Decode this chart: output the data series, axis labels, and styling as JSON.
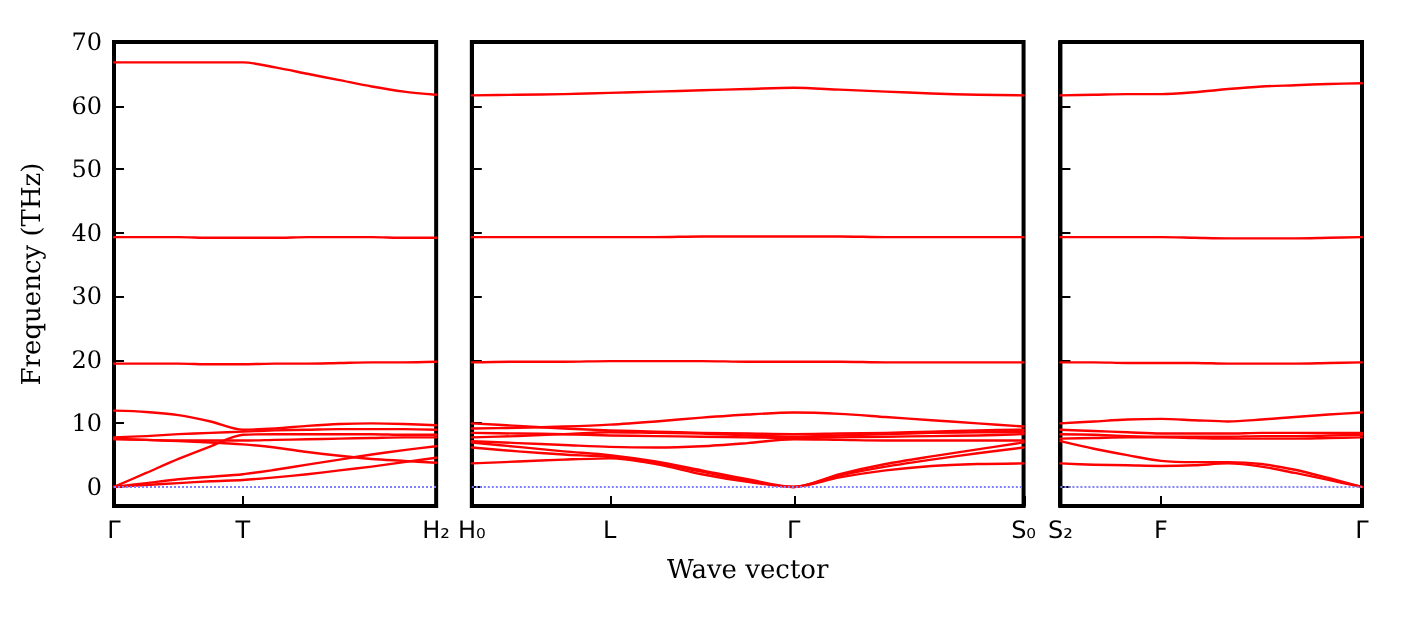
{
  "chart_data": [
    {
      "type": "line",
      "ylabel": "Frequency (THz)",
      "categories": [
        "Γ",
        null,
        null,
        null,
        "T",
        null,
        null,
        null,
        null,
        null,
        "H₂"
      ],
      "ylim": [
        -3,
        70
      ],
      "yticks": [
        0,
        10,
        20,
        30,
        40,
        50,
        60,
        70
      ],
      "ref_lines": [
        {
          "axis": "y",
          "value": 0,
          "color": "#8080ff",
          "line_style": "dotted"
        }
      ],
      "series": [
        {
          "color": "#ff0000",
          "values": [
            66.8,
            66.8,
            66.8,
            66.8,
            66.8,
            66,
            65,
            64,
            63,
            62.2,
            61.7
          ]
        },
        {
          "color": "#ff0000",
          "values": [
            39.3,
            39.3,
            39.3,
            39.2,
            39.2,
            39.2,
            39.3,
            39.3,
            39.3,
            39.2,
            39.2
          ]
        },
        {
          "color": "#ff0000",
          "values": [
            19.4,
            19.4,
            19.4,
            19.3,
            19.3,
            19.4,
            19.4,
            19.5,
            19.6,
            19.6,
            19.7
          ]
        },
        {
          "color": "#ff0000",
          "values": [
            12,
            11.8,
            11.3,
            10.3,
            9,
            9.2,
            9.6,
            9.9,
            10,
            9.9,
            9.7
          ]
        },
        {
          "color": "#ff0000",
          "values": [
            7.8,
            8,
            8.3,
            8.5,
            8.7,
            8.9,
            9,
            9.1,
            9.1,
            9.1,
            9
          ]
        },
        {
          "color": "#ff0000",
          "values": [
            7.5,
            7.4,
            7.3,
            7.3,
            7.3,
            7.4,
            7.5,
            7.6,
            7.7,
            7.8,
            7.8
          ]
        },
        {
          "color": "#ff0000",
          "values": [
            0,
            2.2,
            4.4,
            6.4,
            8.2,
            8.3,
            8.3,
            8.3,
            8.3,
            8.2,
            8.2
          ]
        },
        {
          "color": "#ff0000",
          "values": [
            7.6,
            7.4,
            7.2,
            7,
            6.7,
            6.2,
            5.5,
            4.9,
            4.4,
            4.1,
            3.8
          ]
        },
        {
          "color": "#ff0000",
          "values": [
            0,
            0.6,
            1.2,
            1.6,
            2,
            2.7,
            3.5,
            4.3,
            5.1,
            5.8,
            6.4
          ]
        },
        {
          "color": "#ff0000",
          "values": [
            0,
            0.3,
            0.6,
            0.9,
            1.1,
            1.5,
            2,
            2.6,
            3.2,
            3.9,
            4.6
          ]
        }
      ]
    },
    {
      "type": "line",
      "xlabel": "Wave vector",
      "tick_labels": "x",
      "categories": [
        "H₀",
        null,
        null,
        "L",
        null,
        null,
        null,
        "Γ",
        null,
        null,
        null,
        null,
        "S₀"
      ],
      "ylim": [
        -3,
        70
      ],
      "yticks": [
        {
          "value": 0,
          "label": null
        },
        {
          "value": 10,
          "label": null
        },
        {
          "value": 20,
          "label": null
        },
        {
          "value": 30,
          "label": null
        },
        {
          "value": 40,
          "label": null
        },
        {
          "value": 50,
          "label": null
        },
        {
          "value": 60,
          "label": null
        },
        {
          "value": 70,
          "label": null
        }
      ],
      "ref_lines": [
        {
          "axis": "y",
          "value": 0,
          "color": "#8080ff",
          "line_style": "dotted"
        }
      ],
      "series": [
        {
          "color": "#ff0000",
          "values": [
            61.6,
            61.7,
            61.8,
            62,
            62.2,
            62.4,
            62.6,
            62.8,
            62.5,
            62.2,
            61.9,
            61.7,
            61.6
          ]
        },
        {
          "color": "#ff0000",
          "values": [
            39.3,
            39.3,
            39.3,
            39.3,
            39.3,
            39.4,
            39.4,
            39.4,
            39.4,
            39.3,
            39.3,
            39.3,
            39.3
          ]
        },
        {
          "color": "#ff0000",
          "values": [
            19.6,
            19.7,
            19.7,
            19.8,
            19.8,
            19.8,
            19.7,
            19.7,
            19.7,
            19.6,
            19.6,
            19.6,
            19.6
          ]
        },
        {
          "color": "#ff0000",
          "values": [
            9.2,
            9.3,
            9.5,
            9.8,
            10.3,
            10.9,
            11.4,
            11.7,
            11.5,
            11,
            10.5,
            10,
            9.5
          ]
        },
        {
          "color": "#ff0000",
          "values": [
            10,
            9.6,
            9.2,
            8.9,
            8.7,
            8.5,
            8.4,
            8.3,
            8.4,
            8.5,
            8.7,
            8.9,
            9
          ]
        },
        {
          "color": "#ff0000",
          "values": [
            8.5,
            8.4,
            8.3,
            8.1,
            8,
            7.9,
            7.8,
            7.7,
            7.8,
            7.9,
            8,
            8.1,
            8.3
          ]
        },
        {
          "color": "#ff0000",
          "values": [
            7.8,
            8,
            8.3,
            8.6,
            8.5,
            8.4,
            8.1,
            7.9,
            8.1,
            8.3,
            8.5,
            8.6,
            8.6
          ]
        },
        {
          "color": "#ff0000",
          "values": [
            7.2,
            6.9,
            6.6,
            6.3,
            6.2,
            6.4,
            6.9,
            7.5,
            7.4,
            7.3,
            7.3,
            7.3,
            7.3
          ]
        },
        {
          "color": "#ff0000",
          "values": [
            3.7,
            4,
            4.3,
            4.5,
            3.6,
            2,
            0.8,
            0,
            2,
            3.6,
            4.8,
            5.9,
            7
          ]
        },
        {
          "color": "#ff0000",
          "values": [
            7,
            6.3,
            5.6,
            5,
            4,
            2.6,
            1.2,
            0,
            1.8,
            3.2,
            4.3,
            5.3,
            6.2
          ]
        },
        {
          "color": "#ff0000",
          "values": [
            6.2,
            5.6,
            5.1,
            4.7,
            3.8,
            2.4,
            1,
            0,
            1.5,
            2.6,
            3.3,
            3.6,
            3.7
          ]
        }
      ]
    },
    {
      "type": "line",
      "tick_labels": "x",
      "categories": [
        "S₂",
        null,
        null,
        "F",
        null,
        null,
        null,
        null,
        null,
        "Γ"
      ],
      "ylim": [
        -3,
        70
      ],
      "yticks": [
        {
          "value": 0,
          "label": null
        },
        {
          "value": 10,
          "label": null
        },
        {
          "value": 20,
          "label": null
        },
        {
          "value": 30,
          "label": null
        },
        {
          "value": 40,
          "label": null
        },
        {
          "value": 50,
          "label": null
        },
        {
          "value": 60,
          "label": null
        },
        {
          "value": 70,
          "label": null
        }
      ],
      "ref_lines": [
        {
          "axis": "y",
          "value": 0,
          "color": "#8080ff",
          "line_style": "dotted"
        }
      ],
      "series": [
        {
          "color": "#ff0000",
          "values": [
            61.6,
            61.7,
            61.8,
            61.8,
            62.1,
            62.6,
            63,
            63.2,
            63.4,
            63.5
          ]
        },
        {
          "color": "#ff0000",
          "values": [
            39.3,
            39.3,
            39.3,
            39.3,
            39.2,
            39.1,
            39.1,
            39.1,
            39.2,
            39.3
          ]
        },
        {
          "color": "#ff0000",
          "values": [
            19.6,
            19.6,
            19.5,
            19.5,
            19.5,
            19.4,
            19.4,
            19.4,
            19.5,
            19.6
          ]
        },
        {
          "color": "#ff0000",
          "values": [
            10,
            10.3,
            10.6,
            10.7,
            10.5,
            10.3,
            10.6,
            11,
            11.4,
            11.7
          ]
        },
        {
          "color": "#ff0000",
          "values": [
            9,
            8.8,
            8.6,
            8.4,
            8.4,
            8.4,
            8.5,
            8.5,
            8.5,
            8.5
          ]
        },
        {
          "color": "#ff0000",
          "values": [
            8.3,
            8.2,
            8,
            7.9,
            7.9,
            7.9,
            8,
            8,
            8.1,
            8.2
          ]
        },
        {
          "color": "#ff0000",
          "values": [
            7.6,
            7.7,
            7.8,
            7.8,
            7.7,
            7.6,
            7.6,
            7.6,
            7.7,
            7.8
          ]
        },
        {
          "color": "#ff0000",
          "values": [
            7.2,
            6,
            5,
            4.1,
            3.9,
            3.9,
            3.6,
            2.7,
            1.4,
            0
          ]
        },
        {
          "color": "#ff0000",
          "values": [
            3.7,
            3.5,
            3.4,
            3.3,
            3.4,
            3.7,
            3.2,
            2.2,
            1.1,
            0
          ]
        }
      ]
    }
  ]
}
